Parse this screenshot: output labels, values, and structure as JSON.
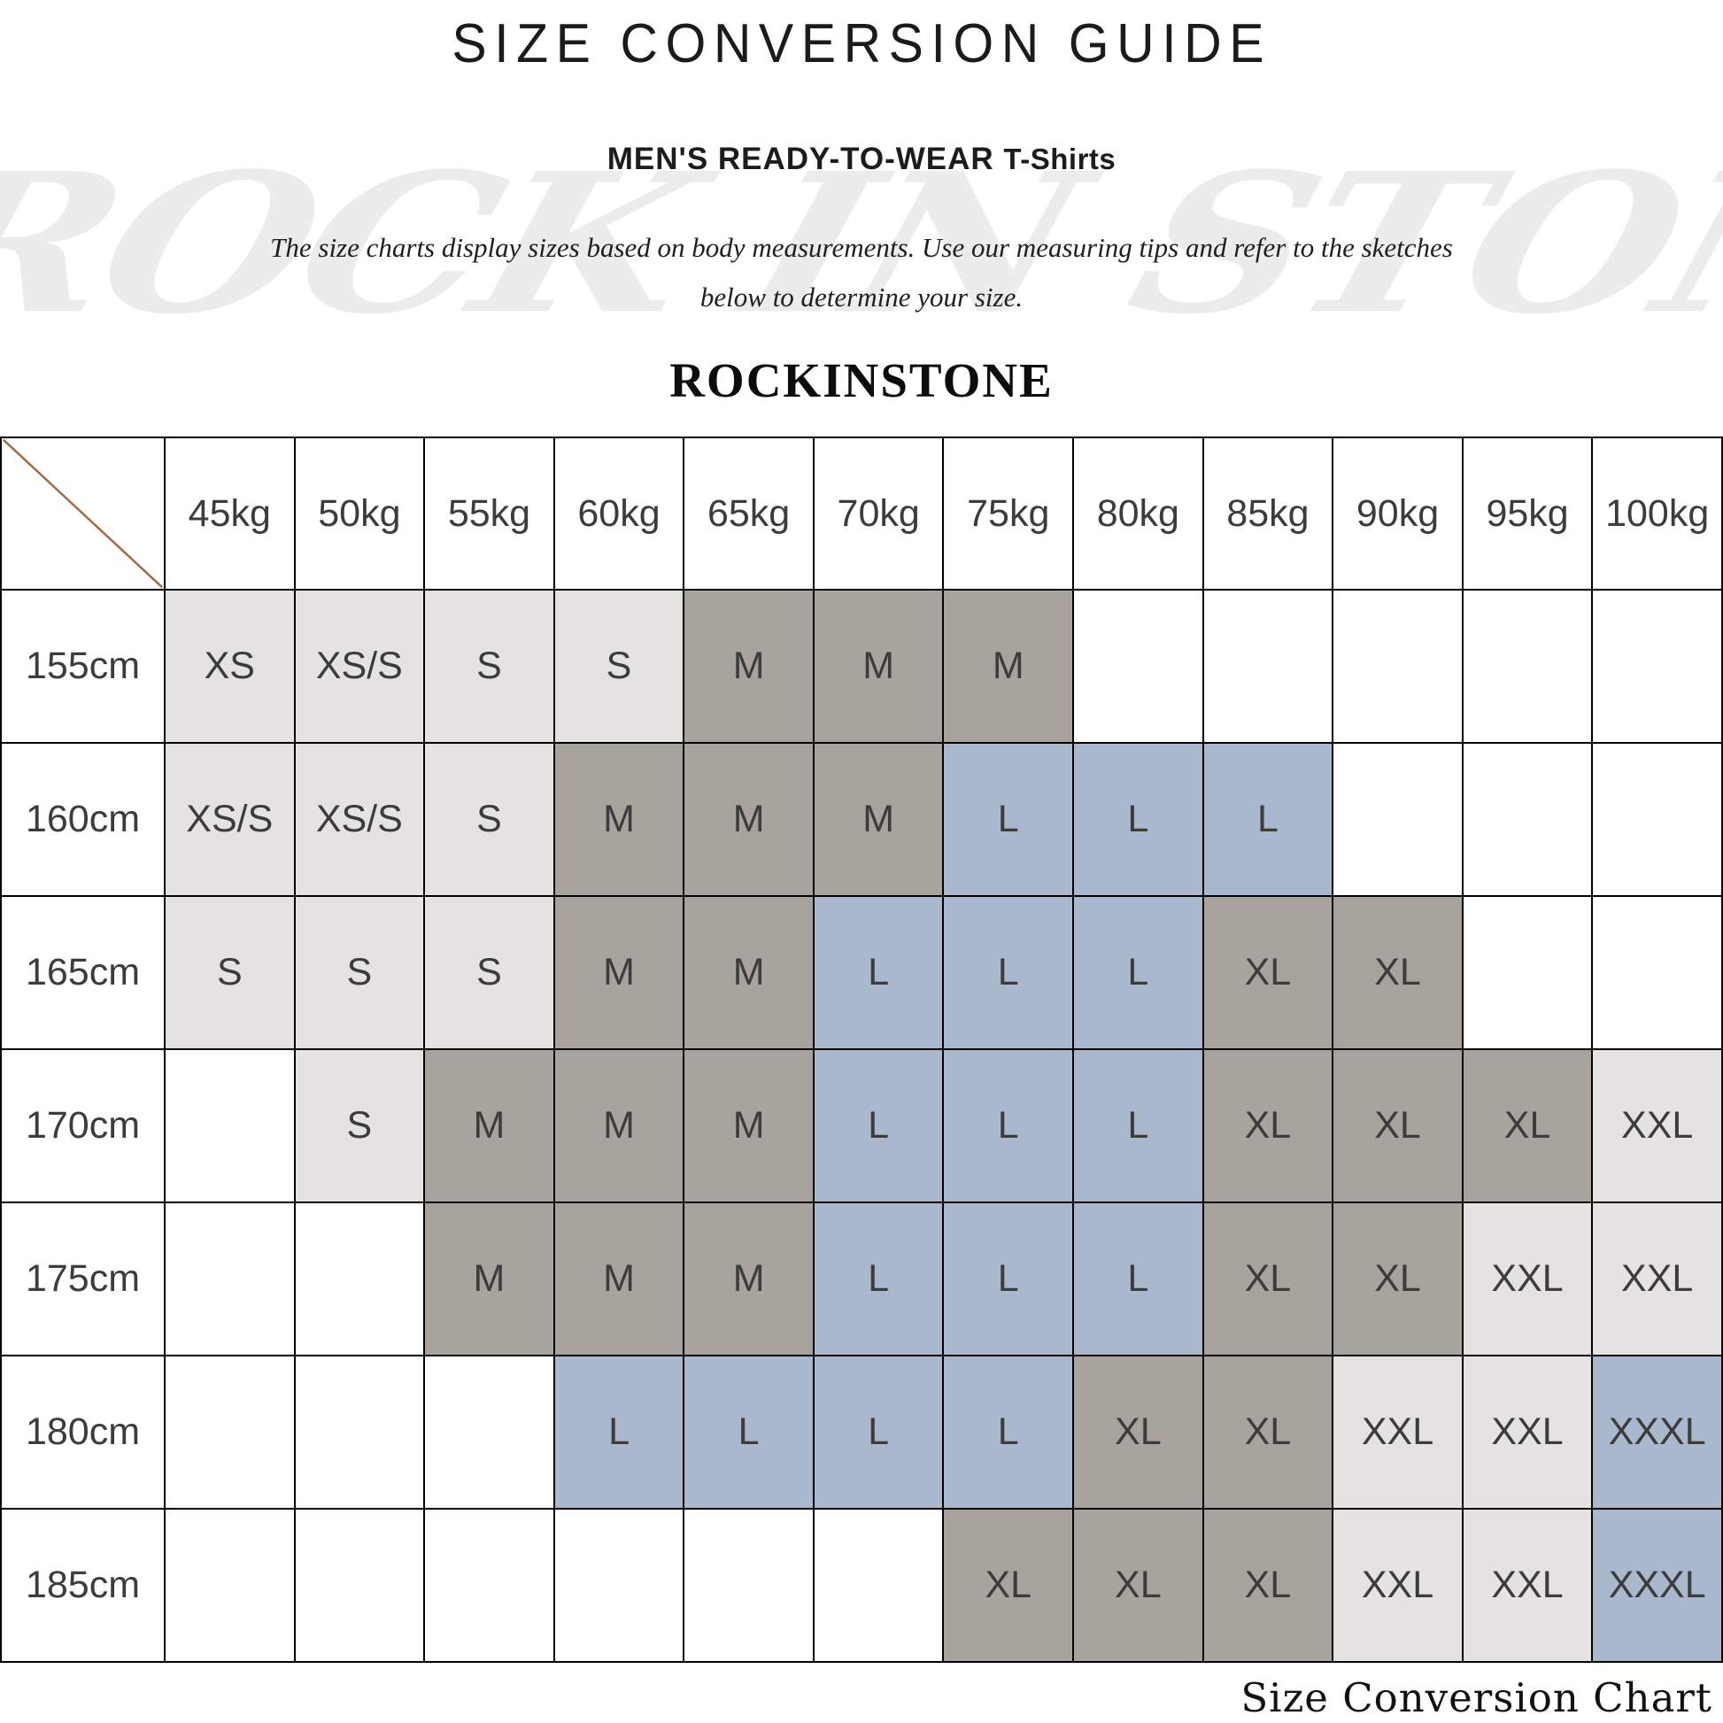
{
  "page": {
    "title": "SIZE CONVERSION GUIDE",
    "subtitle_main": "MEN'S READY-TO-WEAR",
    "subtitle_product": "T-Shirts",
    "description_line1": "The size charts display sizes based on body measurements. Use our measuring tips and refer to the sketches",
    "description_line2": "below to determine your size.",
    "brand": "ROCKINSTONE",
    "watermark_text": "ROCK IN STONE",
    "footer_caption": "Size Conversion Chart"
  },
  "colors": {
    "cell_light": "#e4e3e1",
    "cell_taupe": "#a9a39e",
    "cell_blue": "#a9b8cd",
    "cell_none": "transparent",
    "grid_line": "#000000",
    "diagonal_line": "#a5693f",
    "watermark": "#ececec"
  },
  "chart_data": {
    "type": "table",
    "title": "SIZE CONVERSION GUIDE",
    "subtitle": "MEN'S READY-TO-WEAR T-Shirts",
    "row_header_unit": "height (cm)",
    "column_header_unit": "weight (kg)",
    "columns": [
      "45kg",
      "50kg",
      "55kg",
      "60kg",
      "65kg",
      "70kg",
      "75kg",
      "80kg",
      "85kg",
      "90kg",
      "95kg",
      "100kg"
    ],
    "rows": [
      "155cm",
      "160cm",
      "165cm",
      "170cm",
      "175cm",
      "180cm",
      "185cm"
    ],
    "cells": [
      [
        {
          "s": "XS",
          "c": "light"
        },
        {
          "s": "XS/S",
          "c": "light"
        },
        {
          "s": "S",
          "c": "light"
        },
        {
          "s": "S",
          "c": "light"
        },
        {
          "s": "M",
          "c": "taupe"
        },
        {
          "s": "M",
          "c": "taupe"
        },
        {
          "s": "M",
          "c": "taupe"
        },
        {
          "s": "",
          "c": "none"
        },
        {
          "s": "",
          "c": "none"
        },
        {
          "s": "",
          "c": "none"
        },
        {
          "s": "",
          "c": "none"
        },
        {
          "s": "",
          "c": "none"
        }
      ],
      [
        {
          "s": "XS/S",
          "c": "light"
        },
        {
          "s": "XS/S",
          "c": "light"
        },
        {
          "s": "S",
          "c": "light"
        },
        {
          "s": "M",
          "c": "taupe"
        },
        {
          "s": "M",
          "c": "taupe"
        },
        {
          "s": "M",
          "c": "taupe"
        },
        {
          "s": "L",
          "c": "blue"
        },
        {
          "s": "L",
          "c": "blue"
        },
        {
          "s": "L",
          "c": "blue"
        },
        {
          "s": "",
          "c": "none"
        },
        {
          "s": "",
          "c": "none"
        },
        {
          "s": "",
          "c": "none"
        }
      ],
      [
        {
          "s": "S",
          "c": "light"
        },
        {
          "s": "S",
          "c": "light"
        },
        {
          "s": "S",
          "c": "light"
        },
        {
          "s": "M",
          "c": "taupe"
        },
        {
          "s": "M",
          "c": "taupe"
        },
        {
          "s": "L",
          "c": "blue"
        },
        {
          "s": "L",
          "c": "blue"
        },
        {
          "s": "L",
          "c": "blue"
        },
        {
          "s": "XL",
          "c": "taupe"
        },
        {
          "s": "XL",
          "c": "taupe"
        },
        {
          "s": "",
          "c": "none"
        },
        {
          "s": "",
          "c": "none"
        }
      ],
      [
        {
          "s": "",
          "c": "none"
        },
        {
          "s": "S",
          "c": "light"
        },
        {
          "s": "M",
          "c": "taupe"
        },
        {
          "s": "M",
          "c": "taupe"
        },
        {
          "s": "M",
          "c": "taupe"
        },
        {
          "s": "L",
          "c": "blue"
        },
        {
          "s": "L",
          "c": "blue"
        },
        {
          "s": "L",
          "c": "blue"
        },
        {
          "s": "XL",
          "c": "taupe"
        },
        {
          "s": "XL",
          "c": "taupe"
        },
        {
          "s": "XL",
          "c": "taupe"
        },
        {
          "s": "XXL",
          "c": "light"
        }
      ],
      [
        {
          "s": "",
          "c": "none"
        },
        {
          "s": "",
          "c": "none"
        },
        {
          "s": "M",
          "c": "taupe"
        },
        {
          "s": "M",
          "c": "taupe"
        },
        {
          "s": "M",
          "c": "taupe"
        },
        {
          "s": "L",
          "c": "blue"
        },
        {
          "s": "L",
          "c": "blue"
        },
        {
          "s": "L",
          "c": "blue"
        },
        {
          "s": "XL",
          "c": "taupe"
        },
        {
          "s": "XL",
          "c": "taupe"
        },
        {
          "s": "XXL",
          "c": "light"
        },
        {
          "s": "XXL",
          "c": "light"
        }
      ],
      [
        {
          "s": "",
          "c": "none"
        },
        {
          "s": "",
          "c": "none"
        },
        {
          "s": "",
          "c": "none"
        },
        {
          "s": "L",
          "c": "blue"
        },
        {
          "s": "L",
          "c": "blue"
        },
        {
          "s": "L",
          "c": "blue"
        },
        {
          "s": "L",
          "c": "blue"
        },
        {
          "s": "XL",
          "c": "taupe"
        },
        {
          "s": "XL",
          "c": "taupe"
        },
        {
          "s": "XXL",
          "c": "light"
        },
        {
          "s": "XXL",
          "c": "light"
        },
        {
          "s": "XXXL",
          "c": "blue"
        }
      ],
      [
        {
          "s": "",
          "c": "none"
        },
        {
          "s": "",
          "c": "none"
        },
        {
          "s": "",
          "c": "none"
        },
        {
          "s": "",
          "c": "none"
        },
        {
          "s": "",
          "c": "none"
        },
        {
          "s": "",
          "c": "none"
        },
        {
          "s": "XL",
          "c": "taupe"
        },
        {
          "s": "XL",
          "c": "taupe"
        },
        {
          "s": "XL",
          "c": "taupe"
        },
        {
          "s": "XXL",
          "c": "light"
        },
        {
          "s": "XXL",
          "c": "light"
        },
        {
          "s": "XXXL",
          "c": "blue"
        }
      ]
    ],
    "legend": "none",
    "grid": true
  }
}
